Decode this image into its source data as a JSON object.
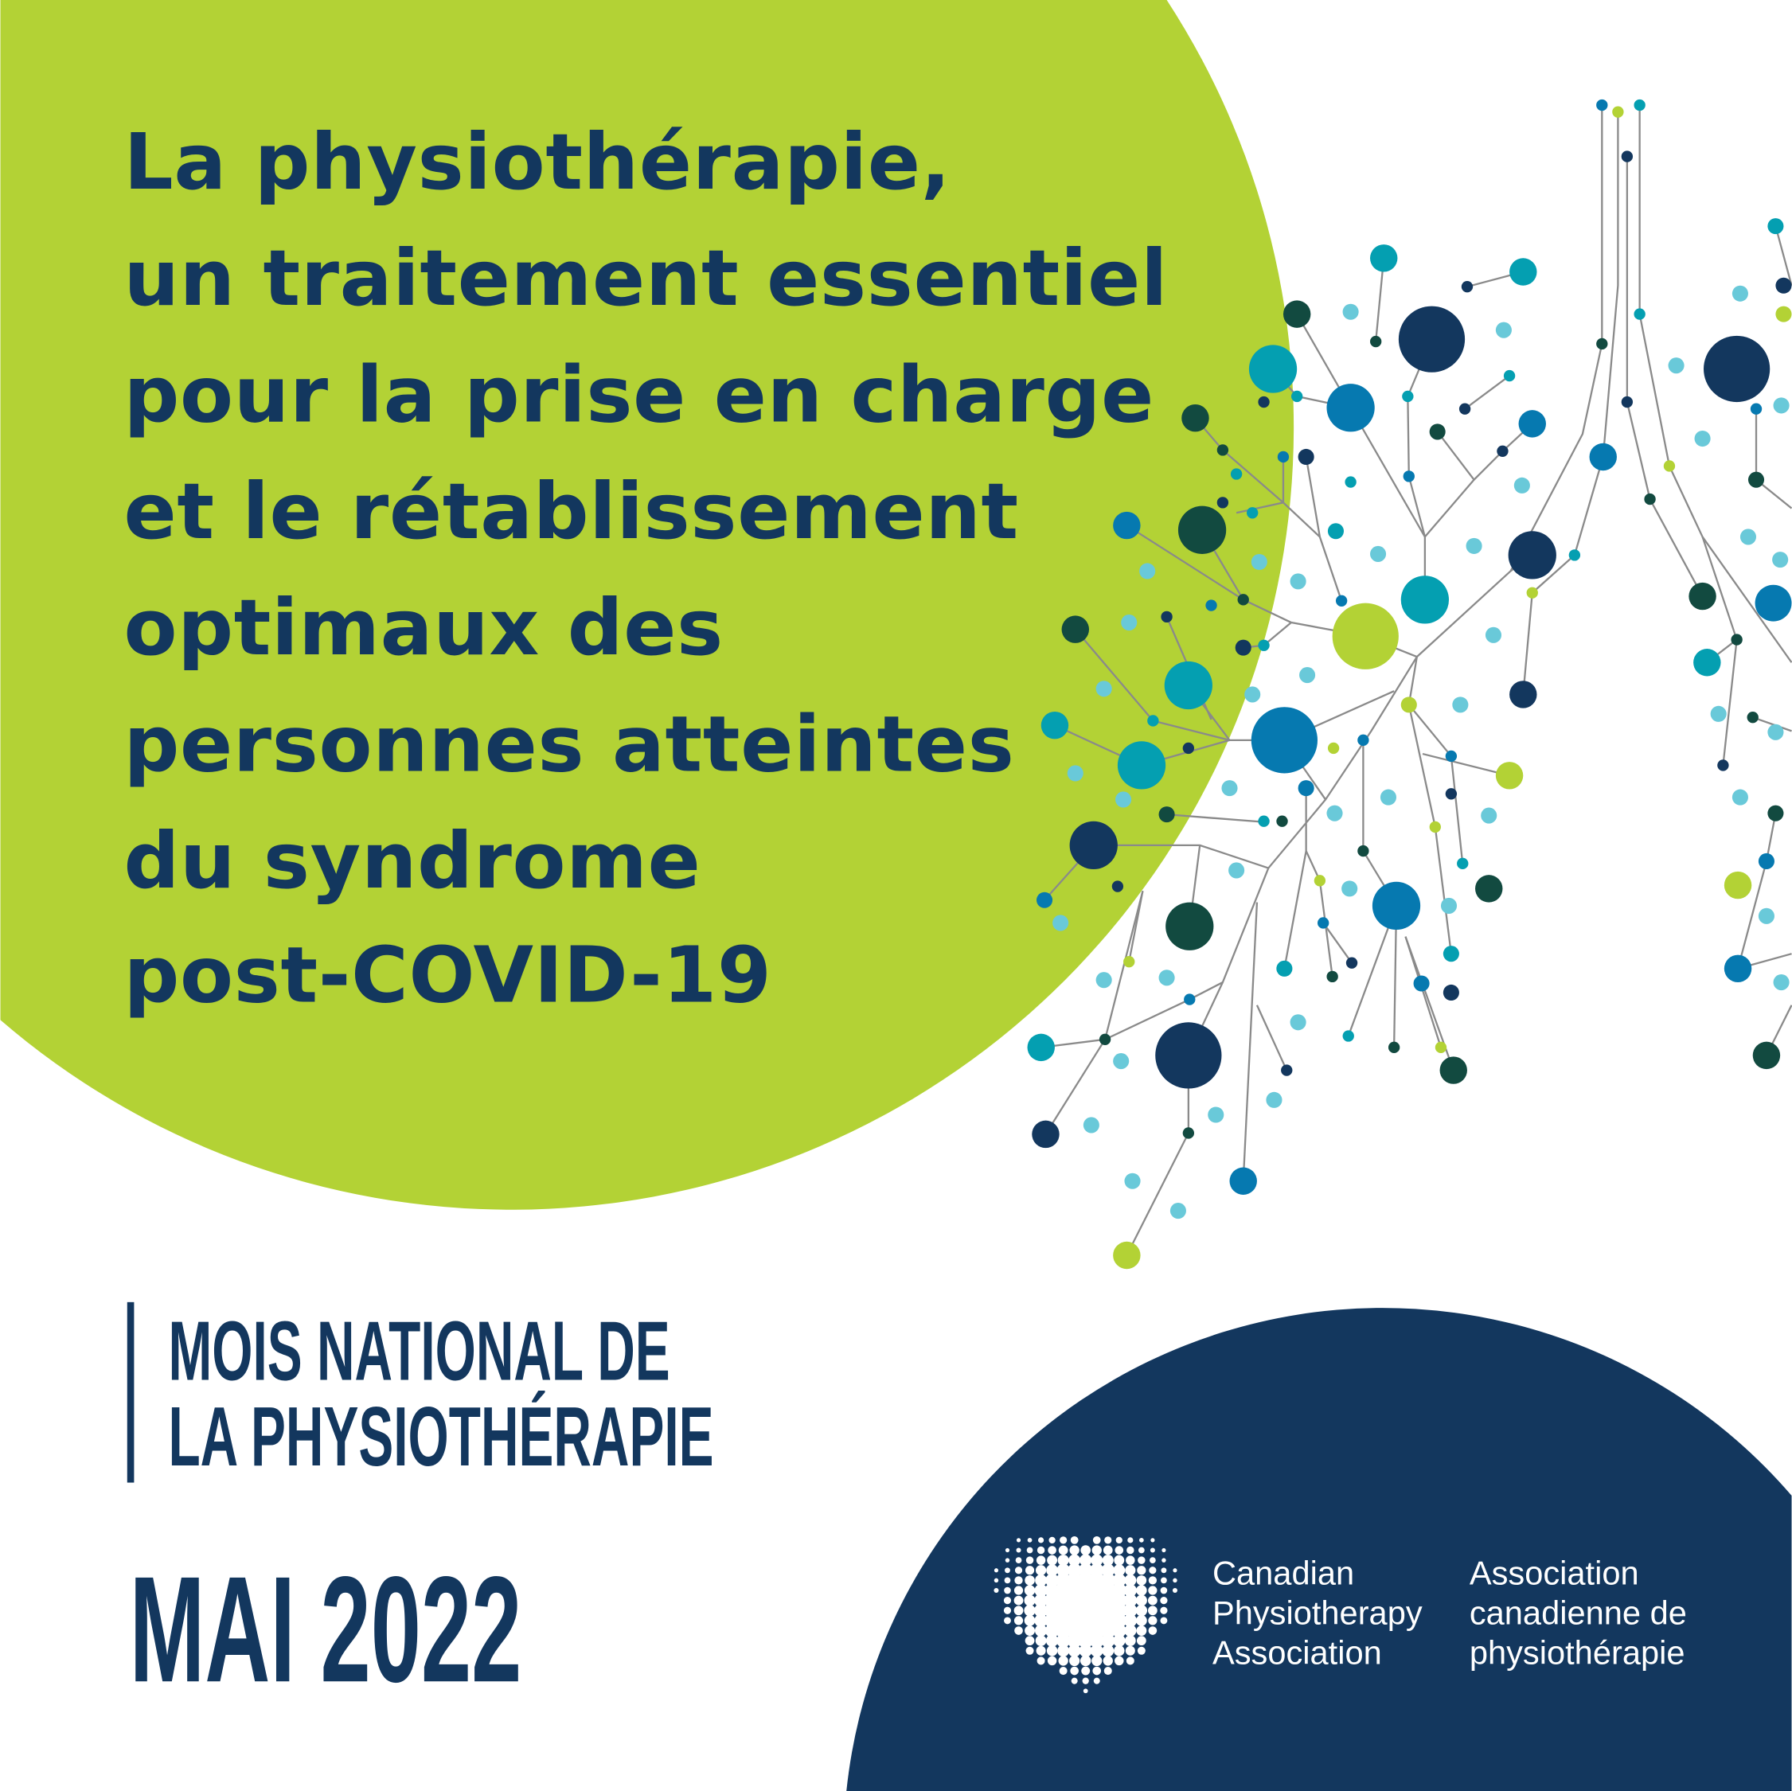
{
  "headline": {
    "lines": [
      "La physiothérapie,",
      "un traitement essentiel",
      "pour la prise en charge",
      "et le rétablissement",
      "optimaux des",
      "personnes atteintes",
      "du syndrome",
      "post-COVID-19"
    ]
  },
  "campaign": {
    "line1": "MOIS NATIONAL DE",
    "line2": "LA PHYSIOTHÉRAPIE",
    "date": "MAI 2022"
  },
  "logo": {
    "icon": "dotted-heart-logo",
    "en": [
      "Canadian",
      "Physiotherapy",
      "Association"
    ],
    "fr": [
      "Association",
      "canadienne de",
      "physiothérapie"
    ]
  },
  "colors": {
    "green": "#b3d235",
    "navy": "#13375e",
    "teal": "#049fb1",
    "blue": "#0679b0",
    "dark_green": "#124a40",
    "light_blue": "#69c9d9",
    "line": "#8a8a8a",
    "white": "#ffffff"
  }
}
